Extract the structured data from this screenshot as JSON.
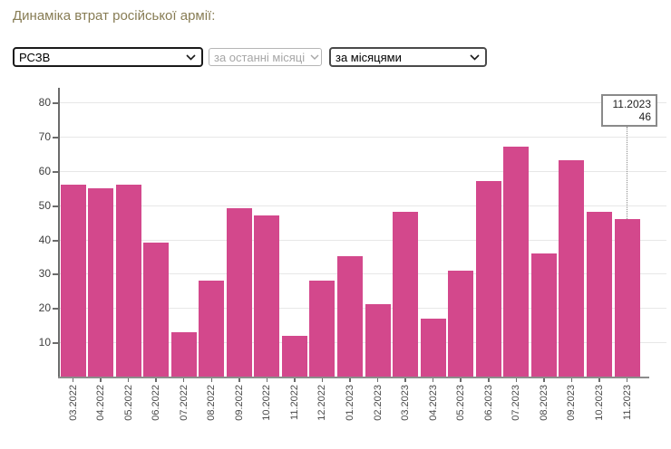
{
  "header": {
    "title": "Динаміка втрат російської армії:"
  },
  "controls": {
    "weapon_select": {
      "value": "РСЗВ"
    },
    "period_select": {
      "value": "за останні місяці",
      "disabled": true
    },
    "grouping_select": {
      "value": "за місяцями"
    }
  },
  "tooltip": {
    "label": "11.2023",
    "value": "46",
    "category_index": 20
  },
  "colors": {
    "bar": "#d3488c",
    "title": "#877c54",
    "grid": "#e7e7e7",
    "axis": "#6b6b6b",
    "tooltip_border": "#8a8a8a"
  },
  "chart_data": {
    "type": "bar",
    "title": "Динаміка втрат російської армії: РСЗВ, за місяцями",
    "categories": [
      "03.2022",
      "04.2022",
      "05.2022",
      "06.2022",
      "07.2022",
      "08.2022",
      "09.2022",
      "10.2022",
      "11.2022",
      "12.2022",
      "01.2023",
      "02.2023",
      "03.2023",
      "04.2023",
      "05.2023",
      "06.2023",
      "07.2023",
      "08.2023",
      "09.2023",
      "10.2023",
      "11.2023"
    ],
    "values": [
      56,
      55,
      56,
      39,
      13,
      28,
      49,
      47,
      12,
      28,
      35,
      21,
      48,
      17,
      31,
      57,
      67,
      36,
      63,
      48,
      46
    ],
    "xlabel": "",
    "ylabel": "",
    "ylim": [
      0,
      84
    ],
    "yticks": [
      10,
      20,
      30,
      40,
      50,
      60,
      70,
      80
    ],
    "grid": true,
    "legend": false,
    "bar_color": "#d3488c"
  }
}
